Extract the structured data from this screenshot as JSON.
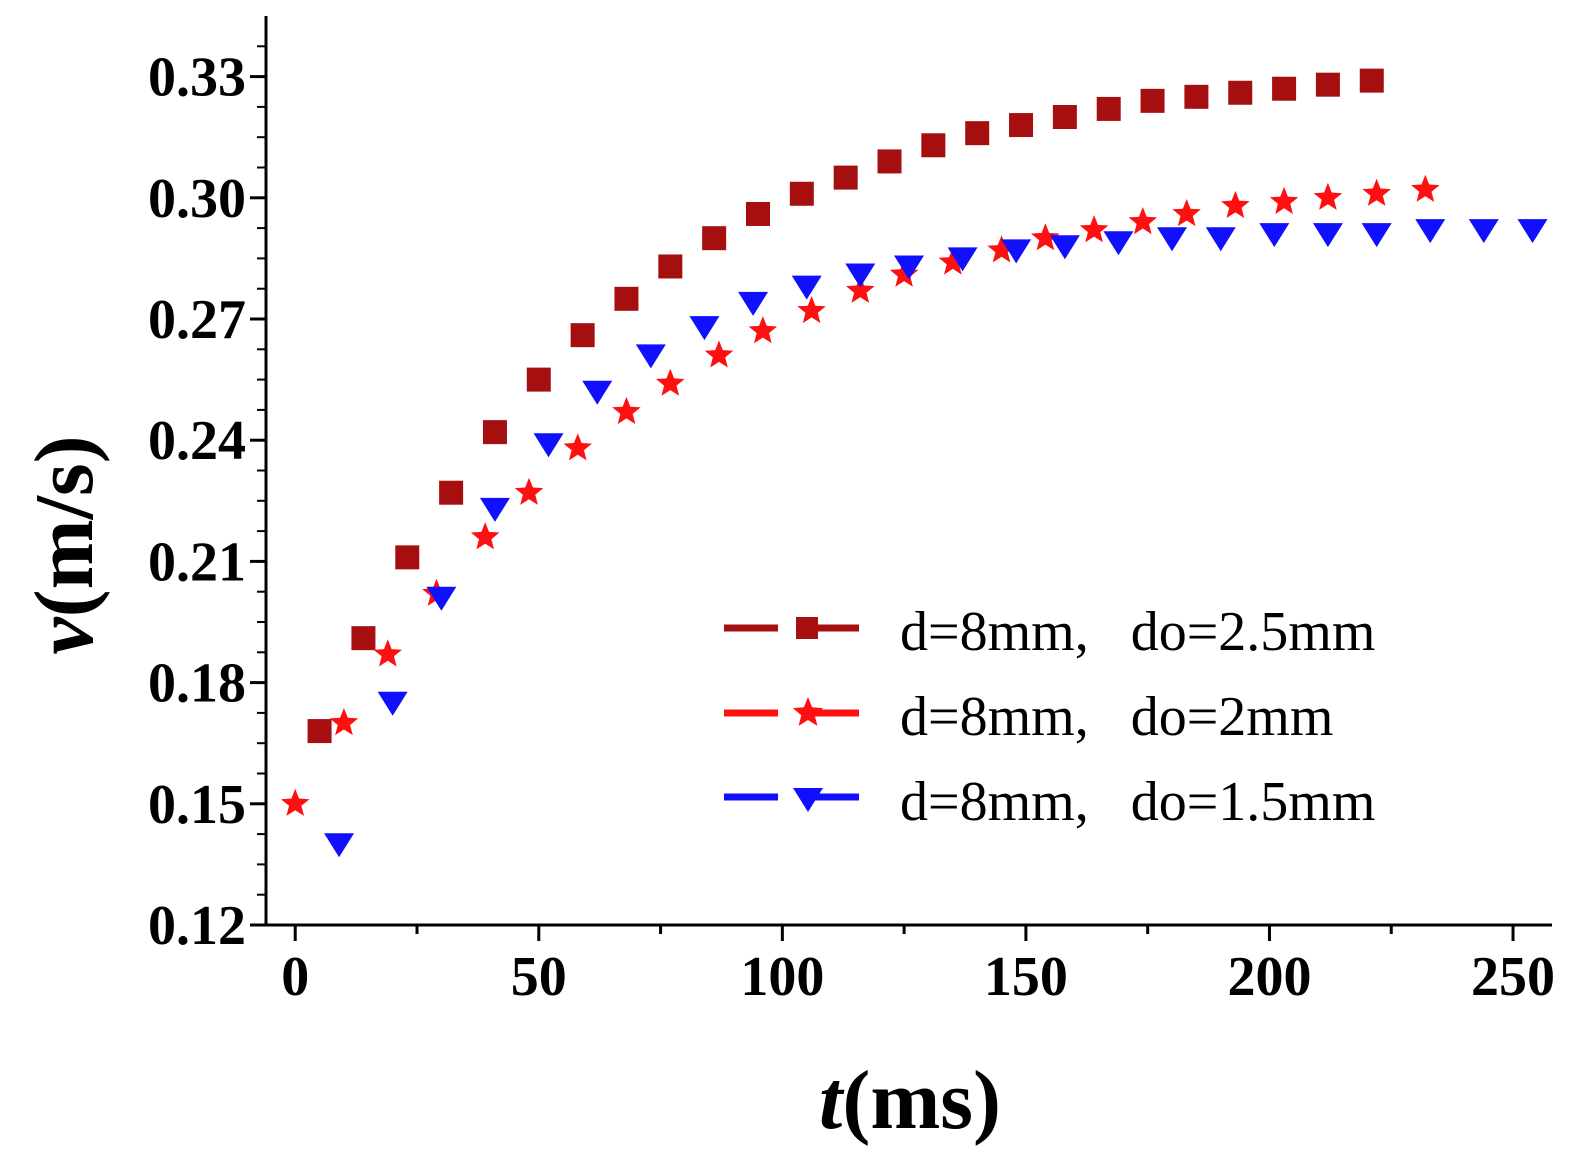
{
  "chart_data": {
    "type": "scatter",
    "title": "",
    "xlabel_italic": "t",
    "xlabel_unit": "(ms)",
    "ylabel_italic": "v",
    "ylabel_unit": "(m/s)",
    "xlim": [
      -6,
      258
    ],
    "ylim": [
      0.12,
      0.345
    ],
    "xticks": [
      0,
      50,
      100,
      150,
      200,
      250
    ],
    "xtick_labels": [
      "0",
      "50",
      "100",
      "150",
      "200",
      "250"
    ],
    "yticks": [
      0.12,
      0.15,
      0.18,
      0.21,
      0.24,
      0.27,
      0.3,
      0.33
    ],
    "ytick_labels": [
      "0.12",
      "0.15",
      "0.18",
      "0.21",
      "0.24",
      "0.27",
      "0.30",
      "0.33"
    ],
    "grid": false,
    "legend_position": "center-right",
    "series": [
      {
        "name": "d=8mm,   do=2.5mm",
        "marker": "square",
        "color": "#a50f0f",
        "x": [
          5,
          14,
          23,
          32,
          41,
          50,
          59,
          68,
          77,
          86,
          95,
          104,
          113,
          122,
          131,
          140,
          149,
          158,
          167,
          176,
          185,
          194,
          203,
          212,
          221
        ],
        "y": [
          0.168,
          0.191,
          0.211,
          0.227,
          0.242,
          0.255,
          0.266,
          0.275,
          0.283,
          0.29,
          0.296,
          0.301,
          0.305,
          0.309,
          0.313,
          0.316,
          0.318,
          0.32,
          0.322,
          0.324,
          0.325,
          0.326,
          0.327,
          0.328,
          0.329
        ]
      },
      {
        "name": "d=8mm,   do=2mm",
        "marker": "star",
        "color": "#ff1010",
        "x": [
          0,
          10,
          19,
          29,
          39,
          48,
          58,
          68,
          77,
          87,
          96,
          106,
          116,
          125,
          135,
          145,
          154,
          164,
          174,
          183,
          193,
          203,
          212,
          222,
          232
        ],
        "y": [
          0.15,
          0.17,
          0.187,
          0.202,
          0.216,
          0.227,
          0.238,
          0.247,
          0.254,
          0.261,
          0.267,
          0.272,
          0.277,
          0.281,
          0.284,
          0.287,
          0.29,
          0.292,
          0.294,
          0.296,
          0.298,
          0.299,
          0.3,
          0.301,
          0.302
        ]
      },
      {
        "name": "d=8mm,   do=1.5mm",
        "marker": "triangle-down",
        "color": "#1010ff",
        "x": [
          9,
          20,
          30,
          41,
          52,
          62,
          73,
          84,
          94,
          105,
          116,
          126,
          137,
          148,
          158,
          169,
          180,
          190,
          201,
          212,
          222,
          233,
          244,
          254
        ],
        "y": [
          0.14,
          0.175,
          0.201,
          0.223,
          0.239,
          0.252,
          0.261,
          0.268,
          0.274,
          0.278,
          0.281,
          0.283,
          0.285,
          0.287,
          0.288,
          0.289,
          0.29,
          0.29,
          0.291,
          0.291,
          0.291,
          0.292,
          0.292,
          0.292
        ]
      }
    ]
  }
}
